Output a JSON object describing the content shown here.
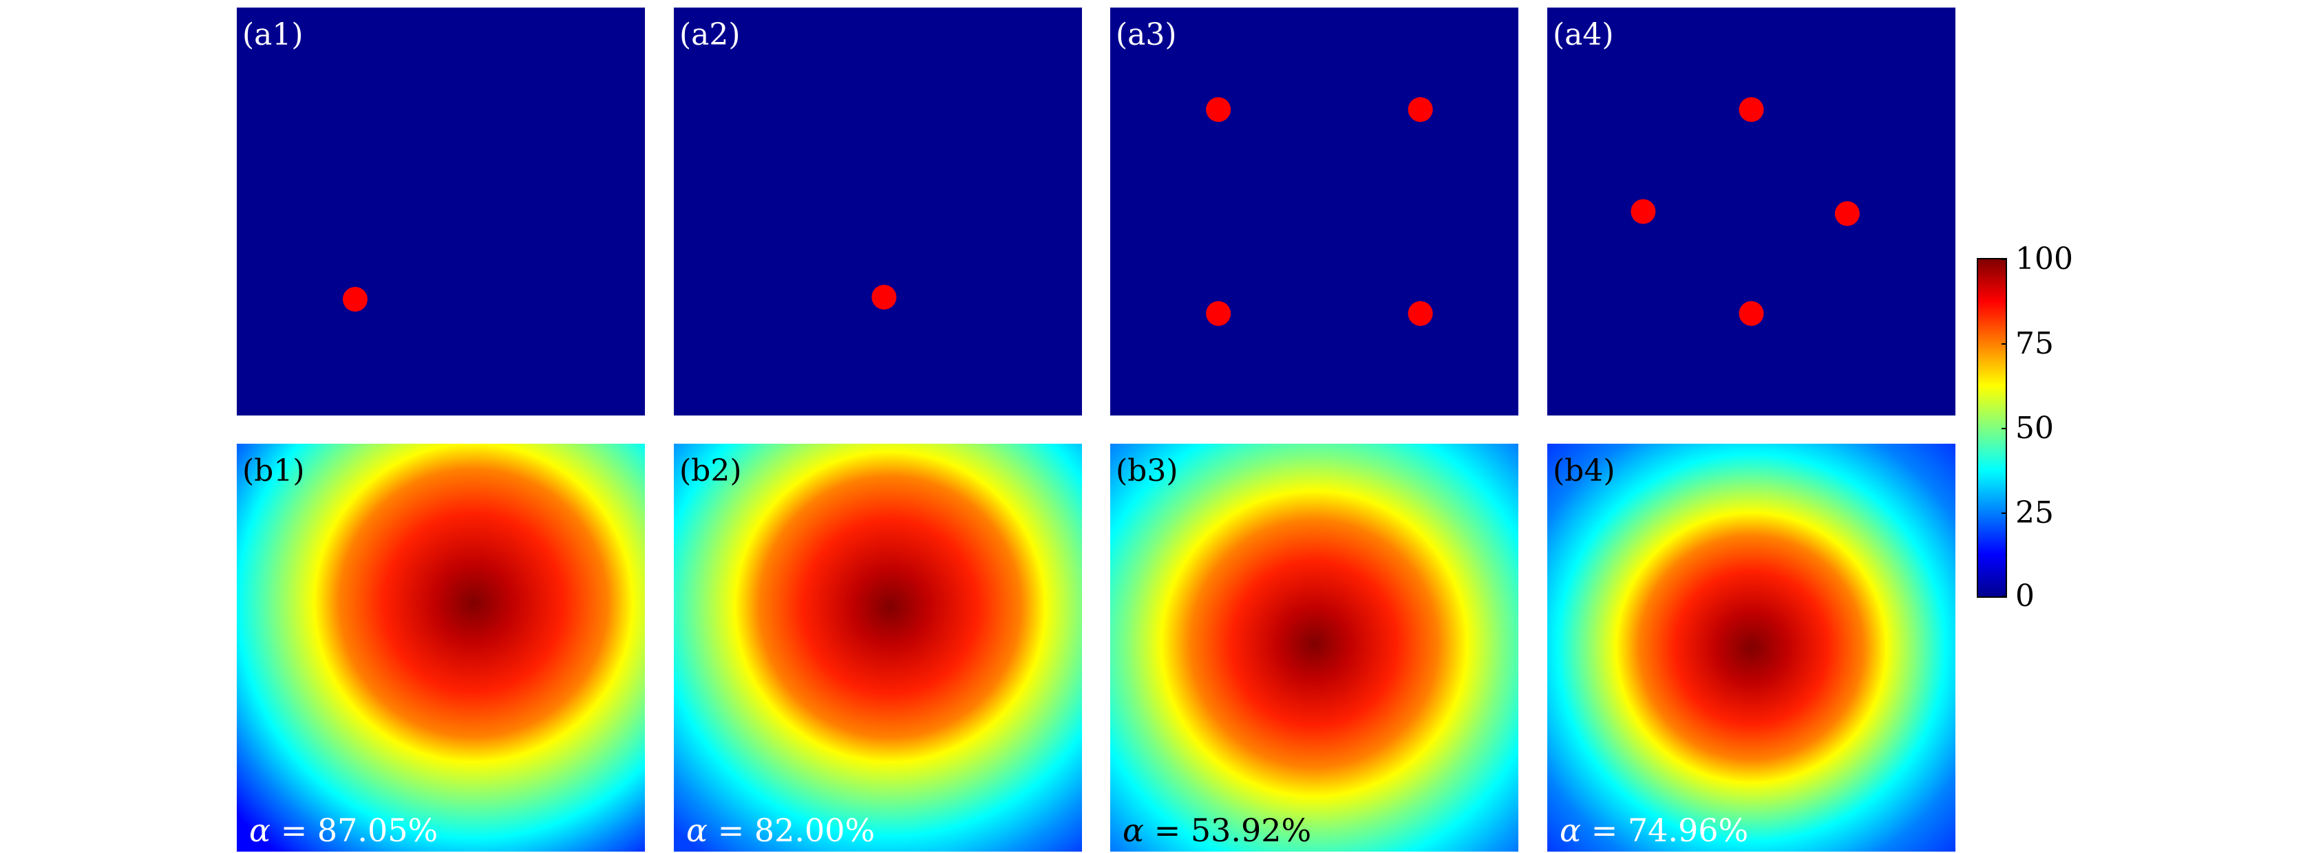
{
  "colors": {
    "background": "#00008f",
    "dot": "#ff0000"
  },
  "top_panels": [
    {
      "label": "(a1)",
      "dots": [
        [
          0.29,
          0.715
        ]
      ]
    },
    {
      "label": "(a2)",
      "dots": [
        [
          0.515,
          0.71
        ]
      ]
    },
    {
      "label": "(a3)",
      "dots": [
        [
          0.265,
          0.25
        ],
        [
          0.76,
          0.25
        ],
        [
          0.265,
          0.75
        ],
        [
          0.76,
          0.75
        ]
      ]
    },
    {
      "label": "(a4)",
      "dots": [
        [
          0.5,
          0.25
        ],
        [
          0.235,
          0.5
        ],
        [
          0.735,
          0.505
        ],
        [
          0.5,
          0.75
        ]
      ]
    }
  ],
  "bottom_panels": [
    {
      "label": "(b1)",
      "alpha_symbol": "α",
      "alpha_text": " = 87.05%",
      "peak": [
        0.58,
        0.39
      ]
    },
    {
      "label": "(b2)",
      "alpha_symbol": "α",
      "alpha_text": " = 82.00%",
      "peak": [
        0.53,
        0.4
      ]
    },
    {
      "label": "(b3)",
      "alpha_symbol": "α",
      "alpha_text": " = 53.92%",
      "peak": [
        0.5,
        0.49
      ]
    },
    {
      "label": "(b4)",
      "alpha_symbol": "α",
      "alpha_text": " = 74.96%",
      "peak": [
        0.5,
        0.5
      ]
    }
  ],
  "colorbar": {
    "min": 0,
    "max": 100,
    "ticks": [
      "100",
      "75",
      "50",
      "25",
      "0"
    ]
  }
}
